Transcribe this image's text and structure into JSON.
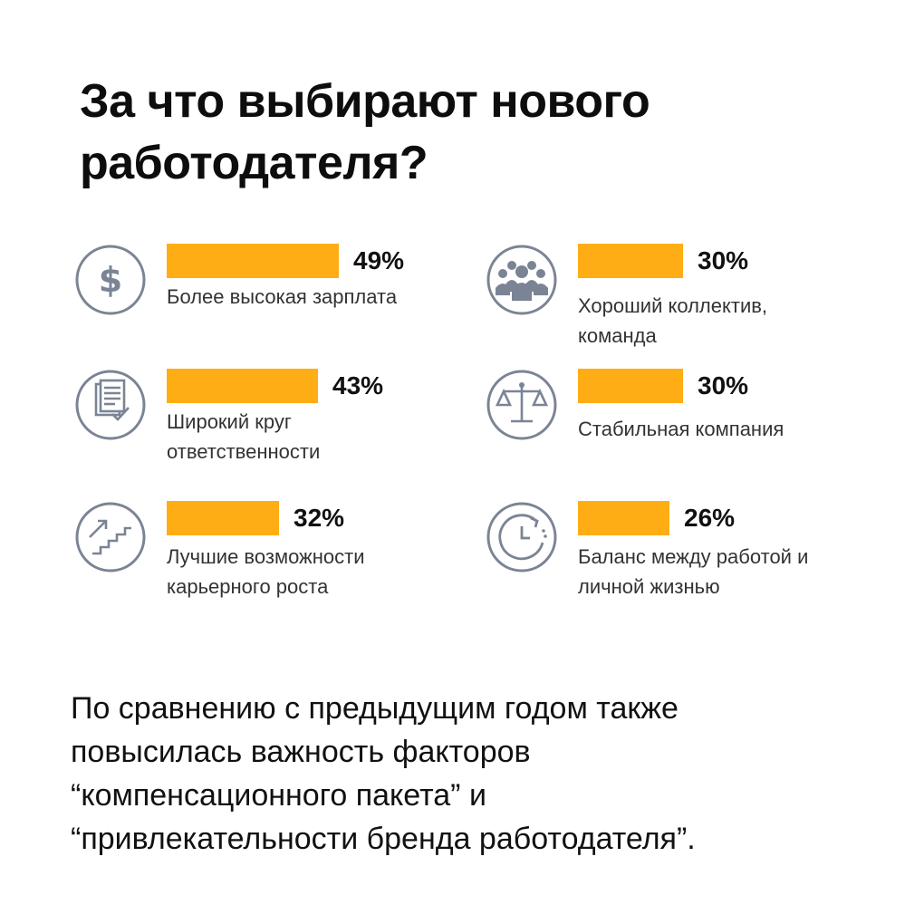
{
  "title": "За что выбирают нового работодателя?",
  "chart_data": {
    "type": "bar",
    "categories": [
      "Более высокая зарплата",
      "Хороший коллектив, команда",
      "Широкий круг ответственности",
      "Стабильная компания",
      "Лучшие возможности карьерного роста",
      "Баланс между работой и личной жизнью"
    ],
    "values": [
      49,
      30,
      43,
      30,
      32,
      26
    ],
    "value_labels": [
      "49%",
      "30%",
      "43%",
      "30%",
      "32%",
      "26%"
    ],
    "unit": "%",
    "xlim": [
      0,
      49
    ],
    "bar_color": "#ffad14",
    "icons": [
      "dollar-icon",
      "team-icon",
      "checklist-icon",
      "scales-icon",
      "career-stairs-icon",
      "clock-icon"
    ]
  },
  "footer_text": "По сравнению с предыдущим годом также\nповысилась важность  факторов\n“компенсационного пакета”  и\n“привлекательности бренда работодателя”.",
  "colors": {
    "accent": "#ffad14",
    "icon_stroke": "#7b8494",
    "text": "#111111"
  }
}
